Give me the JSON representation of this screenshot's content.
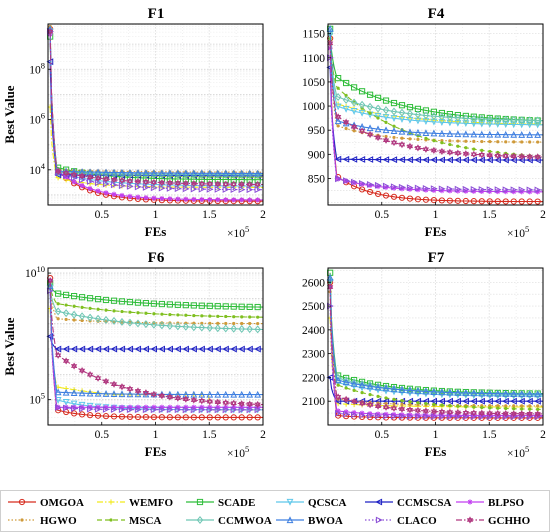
{
  "figure": {
    "legend_entries": [
      {
        "name": "OMGOA",
        "color": "#d62c1f",
        "marker": "circle",
        "dash": "solid"
      },
      {
        "name": "WEMFO",
        "color": "#f2ea1a",
        "marker": "plus",
        "dash": "dashdot"
      },
      {
        "name": "SCADE",
        "color": "#2fbd3a",
        "marker": "square",
        "dash": "solid"
      },
      {
        "name": "QCSCA",
        "color": "#5ec7ea",
        "marker": "tri-down",
        "dash": "solid"
      },
      {
        "name": "CCMSCSA",
        "color": "#1f22c4",
        "marker": "tri-left",
        "dash": "solid"
      },
      {
        "name": "BLPSO",
        "color": "#c23ff0",
        "marker": "star",
        "dash": "solid"
      },
      {
        "name": "HGWO",
        "color": "#cf9a3a",
        "marker": "dot",
        "dash": "dotted"
      },
      {
        "name": "MSCA",
        "color": "#7fbf1f",
        "marker": "dot",
        "dash": "dashed"
      },
      {
        "name": "CCMWOA",
        "color": "#6fc6b4",
        "marker": "diamond",
        "dash": "solid"
      },
      {
        "name": "BWOA",
        "color": "#3f7fe0",
        "marker": "tri-up",
        "dash": "solid"
      },
      {
        "name": "CLACO",
        "color": "#8b4fd6",
        "marker": "tri-right",
        "dash": "dotted"
      },
      {
        "name": "GCHHO",
        "color": "#b0377f",
        "marker": "hexagram",
        "dash": "dashdot"
      }
    ]
  },
  "chart_data": [
    {
      "type": "line",
      "title": "F1",
      "xlabel": "FEs",
      "ylabel": "Best Value",
      "x_multiplier_label": "×10",
      "x_multiplier_exp": "5",
      "xlim": [
        0,
        2
      ],
      "x_ticks": [
        0.5,
        1,
        1.5,
        2
      ],
      "x_tick_labels": [
        "0.5",
        "1",
        "1.5",
        "2"
      ],
      "yscale": "log",
      "ylim_log10": [
        2.6,
        9.8
      ],
      "y_ticks": [
        {
          "base": "10",
          "exp": "4",
          "log10": 4
        },
        {
          "base": "10",
          "exp": "6",
          "log10": 6
        },
        {
          "base": "10",
          "exp": "8",
          "log10": 8
        }
      ],
      "grid": true,
      "series": [
        {
          "name": "OMGOA",
          "start": 9.6,
          "knee": 4.0,
          "end": 2.75,
          "k": 2.2
        },
        {
          "name": "WEMFO",
          "start": 6.5,
          "knee": 3.7,
          "end": 3.3,
          "k": 2.0
        },
        {
          "name": "SCADE",
          "start": 9.3,
          "knee": 4.1,
          "end": 3.6,
          "k": 1.5
        },
        {
          "name": "QCSCA",
          "start": 9.5,
          "knee": 3.9,
          "end": 3.35,
          "k": 1.5
        },
        {
          "name": "CCMSCSA",
          "start": 8.3,
          "knee": 3.8,
          "end": 3.75,
          "k": 0.5
        },
        {
          "name": "BLPSO",
          "start": 9.4,
          "knee": 4.0,
          "end": 2.8,
          "k": 2.0
        },
        {
          "name": "HGWO",
          "start": 9.7,
          "knee": 4.0,
          "end": 3.9,
          "k": 1.0
        },
        {
          "name": "MSCA",
          "start": 9.6,
          "knee": 3.9,
          "end": 3.7,
          "k": 1.0
        },
        {
          "name": "CCMWOA",
          "start": 9.5,
          "knee": 3.9,
          "end": 3.8,
          "k": 1.0
        },
        {
          "name": "BWOA",
          "start": 9.6,
          "knee": 3.95,
          "end": 3.85,
          "k": 1.0
        },
        {
          "name": "CLACO",
          "start": 9.5,
          "knee": 3.9,
          "end": 3.2,
          "k": 1.5
        },
        {
          "name": "GCHHO",
          "start": 9.5,
          "knee": 3.95,
          "end": 3.4,
          "k": 1.2
        }
      ]
    },
    {
      "type": "line",
      "title": "F4",
      "xlabel": "FEs",
      "ylabel": "",
      "x_multiplier_label": "×10",
      "x_multiplier_exp": "5",
      "xlim": [
        0,
        2
      ],
      "x_ticks": [
        0.5,
        1,
        1.5,
        2
      ],
      "x_tick_labels": [
        "0.5",
        "1",
        "1.5",
        "2"
      ],
      "yscale": "linear",
      "ylim": [
        795,
        1170
      ],
      "y_ticks": [
        850,
        900,
        950,
        1000,
        1050,
        1100,
        1150
      ],
      "grid": true,
      "series": [
        {
          "name": "OMGOA",
          "start": 1140,
          "knee": 855,
          "end": 802,
          "k": 2.0
        },
        {
          "name": "WEMFO",
          "start": 1120,
          "knee": 1005,
          "end": 960,
          "k": 1.0
        },
        {
          "name": "SCADE",
          "start": 1160,
          "knee": 1060,
          "end": 965,
          "k": 1.0
        },
        {
          "name": "QCSCA",
          "start": 1150,
          "knee": 1000,
          "end": 960,
          "k": 1.2
        },
        {
          "name": "CCMSCSA",
          "start": 1080,
          "knee": 890,
          "end": 888,
          "k": 1.0
        },
        {
          "name": "BLPSO",
          "start": 1120,
          "knee": 850,
          "end": 822,
          "k": 1.5
        },
        {
          "name": "HGWO",
          "start": 1130,
          "knee": 960,
          "end": 925,
          "k": 1.5
        },
        {
          "name": "MSCA",
          "start": 1140,
          "knee": 1040,
          "end": 885,
          "k": 0.9
        },
        {
          "name": "CCMWOA",
          "start": 1150,
          "knee": 1020,
          "end": 968,
          "k": 1.1
        },
        {
          "name": "BWOA",
          "start": 1160,
          "knee": 970,
          "end": 940,
          "k": 1.5
        },
        {
          "name": "CLACO",
          "start": 1100,
          "knee": 850,
          "end": 826,
          "k": 1.5
        },
        {
          "name": "GCHHO",
          "start": 1130,
          "knee": 980,
          "end": 892,
          "k": 1.2
        }
      ]
    },
    {
      "type": "line",
      "title": "F6",
      "xlabel": "FEs",
      "ylabel": "Best Value",
      "x_multiplier_label": "×10",
      "x_multiplier_exp": "5",
      "xlim": [
        0,
        2
      ],
      "x_ticks": [
        0.5,
        1,
        1.5,
        2
      ],
      "x_tick_labels": [
        "0.5",
        "1",
        "1.5",
        "2"
      ],
      "yscale": "log",
      "ylim_log10": [
        4.0,
        10.2
      ],
      "y_ticks": [
        {
          "base": "10",
          "exp": "5",
          "log10": 5
        },
        {
          "base": "10",
          "exp": "10",
          "log10": 10
        }
      ],
      "grid": true,
      "series": [
        {
          "name": "OMGOA",
          "start": 9.8,
          "knee": 4.6,
          "end": 4.3,
          "k": 2.5
        },
        {
          "name": "WEMFO",
          "start": 8.6,
          "knee": 5.5,
          "end": 4.6,
          "k": 0.5,
          "drop_at": 1.5
        },
        {
          "name": "SCADE",
          "start": 9.6,
          "knee": 9.2,
          "end": 8.6,
          "k": 0.8
        },
        {
          "name": "QCSCA",
          "start": 9.4,
          "knee": 5.0,
          "end": 4.6,
          "k": 2.0
        },
        {
          "name": "CCMSCSA",
          "start": 7.5,
          "knee": 7.0,
          "end": 7.0,
          "k": 1.0
        },
        {
          "name": "BLPSO",
          "start": 9.7,
          "knee": 4.7,
          "end": 4.7,
          "k": 2.0
        },
        {
          "name": "HGWO",
          "start": 9.5,
          "knee": 8.2,
          "end": 8.0,
          "k": 1.2
        },
        {
          "name": "MSCA",
          "start": 9.6,
          "knee": 8.8,
          "end": 8.2,
          "k": 0.8
        },
        {
          "name": "CCMWOA",
          "start": 9.5,
          "knee": 8.5,
          "end": 7.7,
          "k": 0.8
        },
        {
          "name": "BWOA",
          "start": 9.5,
          "knee": 5.3,
          "end": 5.2,
          "k": 1.5
        },
        {
          "name": "CLACO",
          "start": 9.3,
          "knee": 4.7,
          "end": 4.6,
          "k": 2.5
        },
        {
          "name": "GCHHO",
          "start": 9.7,
          "knee": 6.8,
          "end": 4.7,
          "k": 1.0
        }
      ]
    },
    {
      "type": "line",
      "title": "F7",
      "xlabel": "FEs",
      "ylabel": "",
      "x_multiplier_label": "×10",
      "x_multiplier_exp": "5",
      "xlim": [
        0,
        2
      ],
      "x_ticks": [
        0.5,
        1,
        1.5,
        2
      ],
      "x_tick_labels": [
        "0.5",
        "1",
        "1.5",
        "2"
      ],
      "yscale": "linear",
      "ylim": [
        2000,
        2660
      ],
      "y_ticks": [
        2100,
        2200,
        2300,
        2400,
        2500,
        2600
      ],
      "grid": true,
      "series": [
        {
          "name": "OMGOA",
          "start": 2600,
          "knee": 2040,
          "end": 2030,
          "k": 2.5
        },
        {
          "name": "WEMFO",
          "start": 2450,
          "knee": 2090,
          "end": 2075,
          "k": 1.2
        },
        {
          "name": "SCADE",
          "start": 2640,
          "knee": 2210,
          "end": 2130,
          "k": 1.2
        },
        {
          "name": "QCSCA",
          "start": 2600,
          "knee": 2180,
          "end": 2120,
          "k": 1.3
        },
        {
          "name": "CCMSCSA",
          "start": 2200,
          "knee": 2100,
          "end": 2100,
          "k": 1.0
        },
        {
          "name": "BLPSO",
          "start": 2580,
          "knee": 2060,
          "end": 2040,
          "k": 2.0
        },
        {
          "name": "HGWO",
          "start": 2560,
          "knee": 2110,
          "end": 2080,
          "k": 1.5
        },
        {
          "name": "MSCA",
          "start": 2600,
          "knee": 2170,
          "end": 2060,
          "k": 1.0
        },
        {
          "name": "CCMWOA",
          "start": 2610,
          "knee": 2200,
          "end": 2125,
          "k": 1.2
        },
        {
          "name": "BWOA",
          "start": 2620,
          "knee": 2190,
          "end": 2128,
          "k": 1.2
        },
        {
          "name": "CLACO",
          "start": 2500,
          "knee": 2050,
          "end": 2035,
          "k": 2.5
        },
        {
          "name": "GCHHO",
          "start": 2580,
          "knee": 2120,
          "end": 2045,
          "k": 1.3
        }
      ]
    }
  ]
}
